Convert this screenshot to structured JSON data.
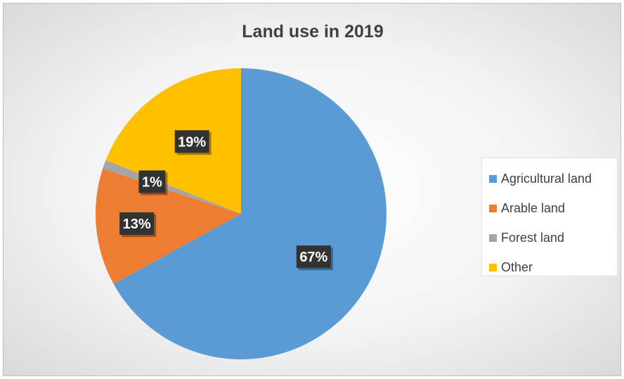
{
  "chart_data": {
    "type": "pie",
    "title": "Land use in 2019",
    "categories": [
      "Agricultural land",
      "Arable land",
      "Forest land",
      "Other"
    ],
    "values": [
      67,
      13,
      1,
      19
    ],
    "labels": [
      "67%",
      "13%",
      "1%",
      "19%"
    ],
    "colors": [
      "#5B9BD5",
      "#ED7D31",
      "#A5A5A5",
      "#FFC000"
    ],
    "legend_position": "right"
  }
}
